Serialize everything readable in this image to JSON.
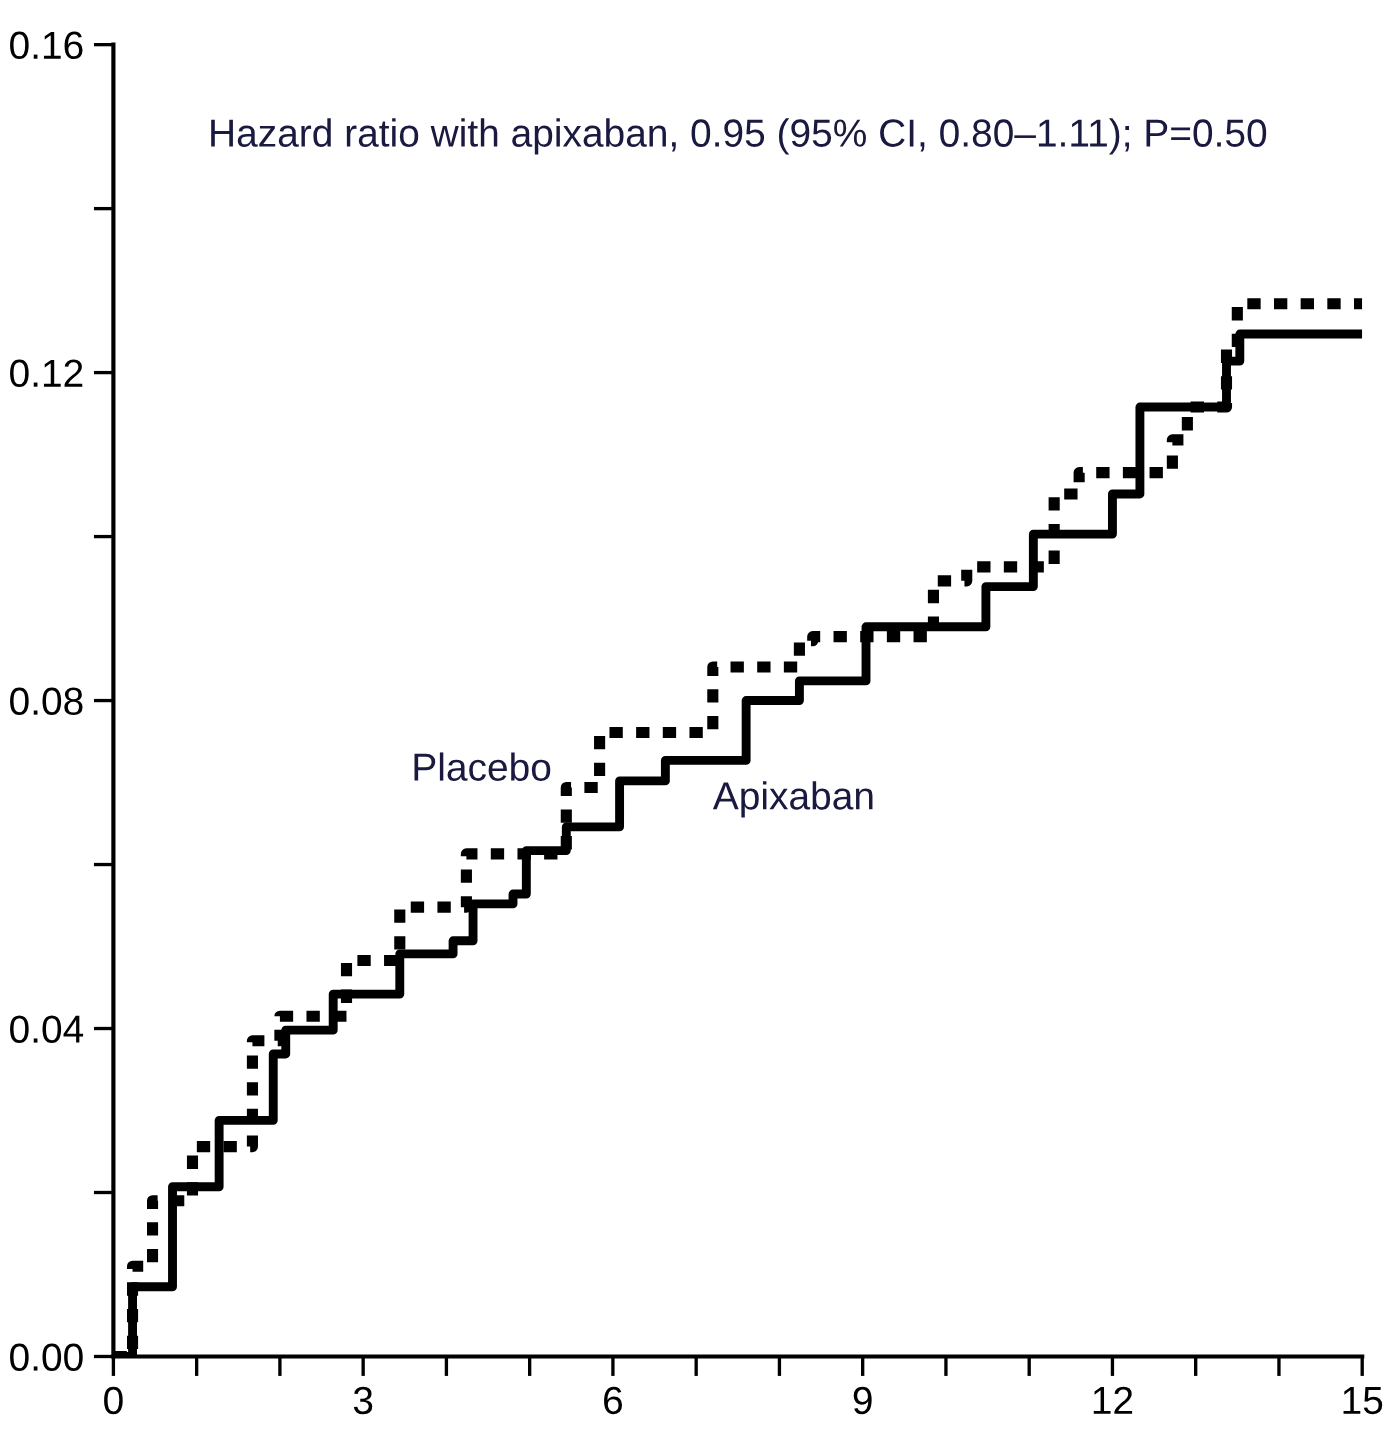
{
  "chart_data": {
    "type": "step",
    "xlim": [
      0,
      15
    ],
    "ylim": [
      0,
      0.16
    ],
    "xticks": [
      0,
      {
        "value": 1,
        "label": null
      },
      {
        "value": 2,
        "label": null
      },
      3,
      {
        "value": 4,
        "label": null
      },
      {
        "value": 5,
        "label": null
      },
      6,
      {
        "value": 7,
        "label": null
      },
      {
        "value": 8,
        "label": null
      },
      9,
      {
        "value": 10,
        "label": null
      },
      {
        "value": 11,
        "label": null
      },
      12,
      {
        "value": 13,
        "label": null
      },
      {
        "value": 14,
        "label": null
      },
      15
    ],
    "yticks": [
      {
        "value": 0,
        "label": "0.00"
      },
      {
        "value": 0.02,
        "label": null
      },
      {
        "value": 0.04,
        "label": "0.04"
      },
      {
        "value": 0.06,
        "label": null
      },
      {
        "value": 0.08,
        "label": "0.08"
      },
      {
        "value": 0.1,
        "label": null
      },
      {
        "value": 0.12,
        "label": "0.12"
      },
      {
        "value": 0.14,
        "label": null
      },
      {
        "value": 0.16,
        "label": "0.16"
      }
    ],
    "grid": false,
    "legend": false,
    "marker": "none",
    "series": [
      {
        "name": "Apixaban",
        "color": "#000000",
        "line_style": "solid",
        "x": [
          0,
          0.23,
          0.71,
          1.27,
          1.92,
          2.07,
          2.64,
          3.44,
          4.08,
          4.32,
          4.8,
          4.96,
          5.44,
          6.08,
          6.63,
          7.6,
          8.24,
          9.04,
          9.69,
          10.48,
          10.65,
          11.05,
          12.0,
          12.33,
          13.37,
          13.53,
          15
        ],
        "values": [
          0,
          0.0085,
          0.0207,
          0.0288,
          0.0369,
          0.0398,
          0.0442,
          0.0491,
          0.0507,
          0.0552,
          0.0564,
          0.0617,
          0.0646,
          0.0702,
          0.0727,
          0.08,
          0.0824,
          0.089,
          0.089,
          0.0939,
          0.0939,
          0.1003,
          0.1052,
          0.1158,
          0.1214,
          0.1247,
          0.1247
        ]
      },
      {
        "name": "Placebo",
        "color": "#000000",
        "line_style": "dotted",
        "x": [
          0,
          0.23,
          0.47,
          0.95,
          1.67,
          2.0,
          2.8,
          3.44,
          4.24,
          5.44,
          5.84,
          7.2,
          8.24,
          8.4,
          9.85,
          10.25,
          11.3,
          11.6,
          12.72,
          12.9,
          13.37,
          13.5,
          15
        ],
        "values": [
          0,
          0.011,
          0.019,
          0.0256,
          0.0385,
          0.0415,
          0.0483,
          0.0548,
          0.0613,
          0.0694,
          0.0761,
          0.0841,
          0.0873,
          0.0878,
          0.0946,
          0.0963,
          0.1052,
          0.1078,
          0.1118,
          0.1158,
          0.123,
          0.1284,
          0.1284
        ]
      }
    ],
    "annotations": [
      "Hazard ratio with apixaban, 0.95 (95% CI, 0.80–1.11); P=0.50"
    ]
  }
}
